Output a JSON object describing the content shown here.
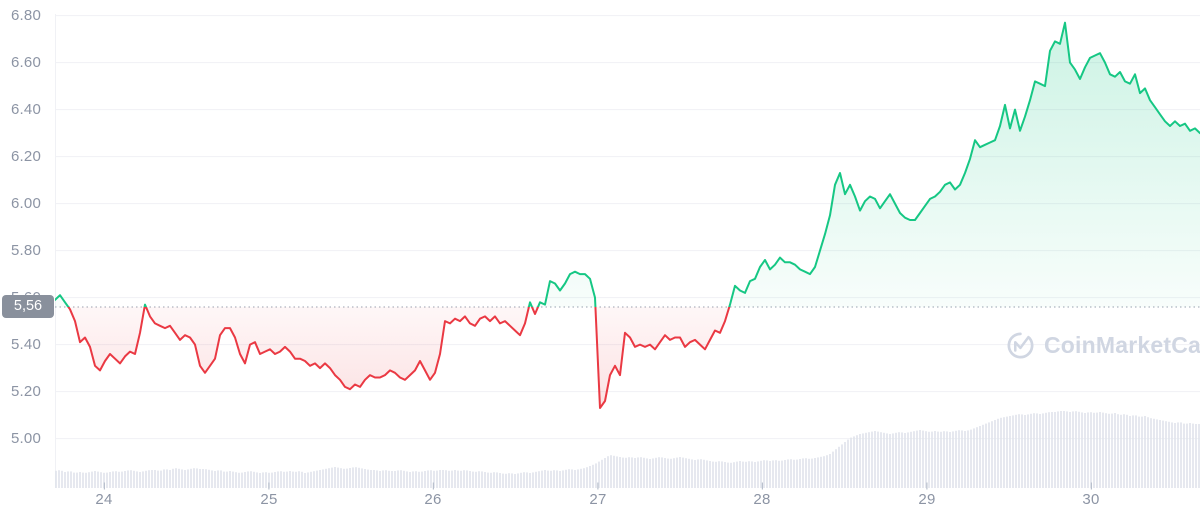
{
  "watermark": {
    "text": "CoinMarketCap",
    "logo": "coinmarketcap-logo"
  },
  "colors": {
    "up": "#16c784",
    "down": "#ea3943",
    "grid": "#f0f1f5",
    "threshold_dotted": "#9aa1b0",
    "axis_label": "#8c94a4",
    "badge_bg": "#89909c",
    "badge_text": "#ffffff",
    "volume_bar": "#dfe3eb",
    "day_tick": "#b9c0cd",
    "watermark": "#d0d6e2"
  },
  "chart_data": {
    "type": "line",
    "title": "",
    "xlabel": "",
    "ylabel": "",
    "grid": true,
    "legend": false,
    "baseline_price": 5.56,
    "current_price_label": "5,56",
    "x_axis": {
      "range": [
        23.7,
        30.66
      ],
      "ticks": [
        24,
        25,
        26,
        27,
        28,
        29,
        30
      ],
      "tick_labels": [
        "24",
        "25",
        "26",
        "27",
        "28",
        "29",
        "30"
      ]
    },
    "y_axis": {
      "range": [
        4.92,
        6.87
      ],
      "ticks": [
        6.8,
        6.6,
        6.4,
        6.2,
        6.0,
        5.8,
        5.6,
        5.4,
        5.2,
        5.0
      ],
      "tick_labels": [
        "6.80",
        "6.60",
        "6.40",
        "6.20",
        "6.00",
        "5.80",
        "5.60",
        "5.40",
        "5.20",
        "5.00"
      ]
    },
    "series": {
      "name": "price",
      "t_start": 23.7,
      "t_end": 30.66,
      "values": [
        5.59,
        5.61,
        5.58,
        5.55,
        5.5,
        5.41,
        5.43,
        5.39,
        5.31,
        5.29,
        5.33,
        5.36,
        5.34,
        5.32,
        5.35,
        5.37,
        5.36,
        5.45,
        5.57,
        5.52,
        5.49,
        5.48,
        5.47,
        5.48,
        5.45,
        5.42,
        5.44,
        5.43,
        5.4,
        5.31,
        5.28,
        5.31,
        5.34,
        5.44,
        5.47,
        5.47,
        5.43,
        5.36,
        5.32,
        5.4,
        5.41,
        5.36,
        5.37,
        5.38,
        5.36,
        5.37,
        5.39,
        5.37,
        5.34,
        5.34,
        5.33,
        5.31,
        5.32,
        5.3,
        5.32,
        5.3,
        5.27,
        5.25,
        5.22,
        5.21,
        5.23,
        5.22,
        5.25,
        5.27,
        5.26,
        5.26,
        5.27,
        5.29,
        5.28,
        5.26,
        5.25,
        5.27,
        5.29,
        5.33,
        5.29,
        5.25,
        5.28,
        5.36,
        5.5,
        5.49,
        5.51,
        5.5,
        5.52,
        5.49,
        5.48,
        5.51,
        5.52,
        5.5,
        5.52,
        5.49,
        5.5,
        5.48,
        5.46,
        5.44,
        5.49,
        5.58,
        5.53,
        5.58,
        5.57,
        5.67,
        5.66,
        5.63,
        5.66,
        5.7,
        5.71,
        5.7,
        5.7,
        5.68,
        5.6,
        5.13,
        5.16,
        5.27,
        5.31,
        5.27,
        5.45,
        5.43,
        5.39,
        5.4,
        5.39,
        5.4,
        5.38,
        5.41,
        5.44,
        5.42,
        5.43,
        5.43,
        5.39,
        5.41,
        5.42,
        5.4,
        5.38,
        5.42,
        5.46,
        5.45,
        5.5,
        5.57,
        5.65,
        5.63,
        5.62,
        5.67,
        5.68,
        5.73,
        5.76,
        5.72,
        5.74,
        5.77,
        5.75,
        5.75,
        5.74,
        5.72,
        5.71,
        5.7,
        5.73,
        5.8,
        5.87,
        5.95,
        6.08,
        6.13,
        6.04,
        6.08,
        6.03,
        5.97,
        6.01,
        6.03,
        6.02,
        5.98,
        6.01,
        6.04,
        6.0,
        5.96,
        5.94,
        5.93,
        5.93,
        5.96,
        5.99,
        6.02,
        6.03,
        6.05,
        6.08,
        6.09,
        6.06,
        6.08,
        6.13,
        6.19,
        6.27,
        6.24,
        6.25,
        6.26,
        6.27,
        6.33,
        6.42,
        6.32,
        6.4,
        6.31,
        6.37,
        6.44,
        6.52,
        6.51,
        6.5,
        6.65,
        6.69,
        6.68,
        6.77,
        6.6,
        6.57,
        6.53,
        6.58,
        6.62,
        6.63,
        6.64,
        6.6,
        6.55,
        6.54,
        6.56,
        6.52,
        6.51,
        6.55,
        6.47,
        6.49,
        6.44,
        6.41,
        6.38,
        6.35,
        6.33,
        6.35,
        6.33,
        6.34,
        6.31,
        6.32,
        6.3
      ]
    },
    "volume": {
      "name": "volume",
      "units": "relative",
      "values": [
        17,
        18,
        16,
        17,
        15,
        16,
        15,
        16,
        17,
        16,
        15,
        16,
        17,
        16,
        17,
        18,
        17,
        16,
        17,
        18,
        18,
        17,
        19,
        18,
        20,
        19,
        18,
        19,
        20,
        19,
        19,
        18,
        17,
        18,
        16,
        17,
        16,
        15,
        16,
        17,
        16,
        15,
        16,
        15,
        16,
        17,
        16,
        17,
        16,
        17,
        15,
        16,
        17,
        18,
        19,
        20,
        21,
        20,
        19,
        20,
        21,
        20,
        19,
        18,
        18,
        17,
        18,
        17,
        17,
        18,
        17,
        16,
        17,
        16,
        17,
        18,
        17,
        18,
        18,
        17,
        18,
        17,
        18,
        17,
        16,
        17,
        16,
        15,
        16,
        15,
        14,
        15,
        14,
        15,
        16,
        15,
        16,
        17,
        18,
        17,
        18,
        17,
        18,
        19,
        18,
        19,
        20,
        22,
        24,
        27,
        30,
        33,
        32,
        31,
        30,
        31,
        30,
        31,
        30,
        29,
        30,
        31,
        30,
        29,
        30,
        31,
        30,
        29,
        28,
        29,
        28,
        27,
        26,
        27,
        26,
        25,
        26,
        27,
        26,
        27,
        26,
        27,
        28,
        27,
        28,
        27,
        28,
        29,
        28,
        29,
        30,
        29,
        30,
        31,
        32,
        34,
        38,
        42,
        46,
        50,
        52,
        54,
        55,
        56,
        57,
        56,
        55,
        54,
        55,
        56,
        55,
        56,
        57,
        58,
        57,
        56,
        57,
        56,
        57,
        56,
        57,
        58,
        57,
        58,
        60,
        62,
        64,
        66,
        68,
        70,
        71,
        72,
        73,
        74,
        73,
        74,
        75,
        74,
        75,
        76,
        76,
        77,
        77,
        76,
        77,
        76,
        75,
        76,
        75,
        76,
        75,
        74,
        75,
        73,
        74,
        72,
        73,
        71,
        72,
        70,
        69,
        68,
        67,
        66,
        65,
        66,
        64,
        65,
        64,
        64
      ]
    }
  }
}
